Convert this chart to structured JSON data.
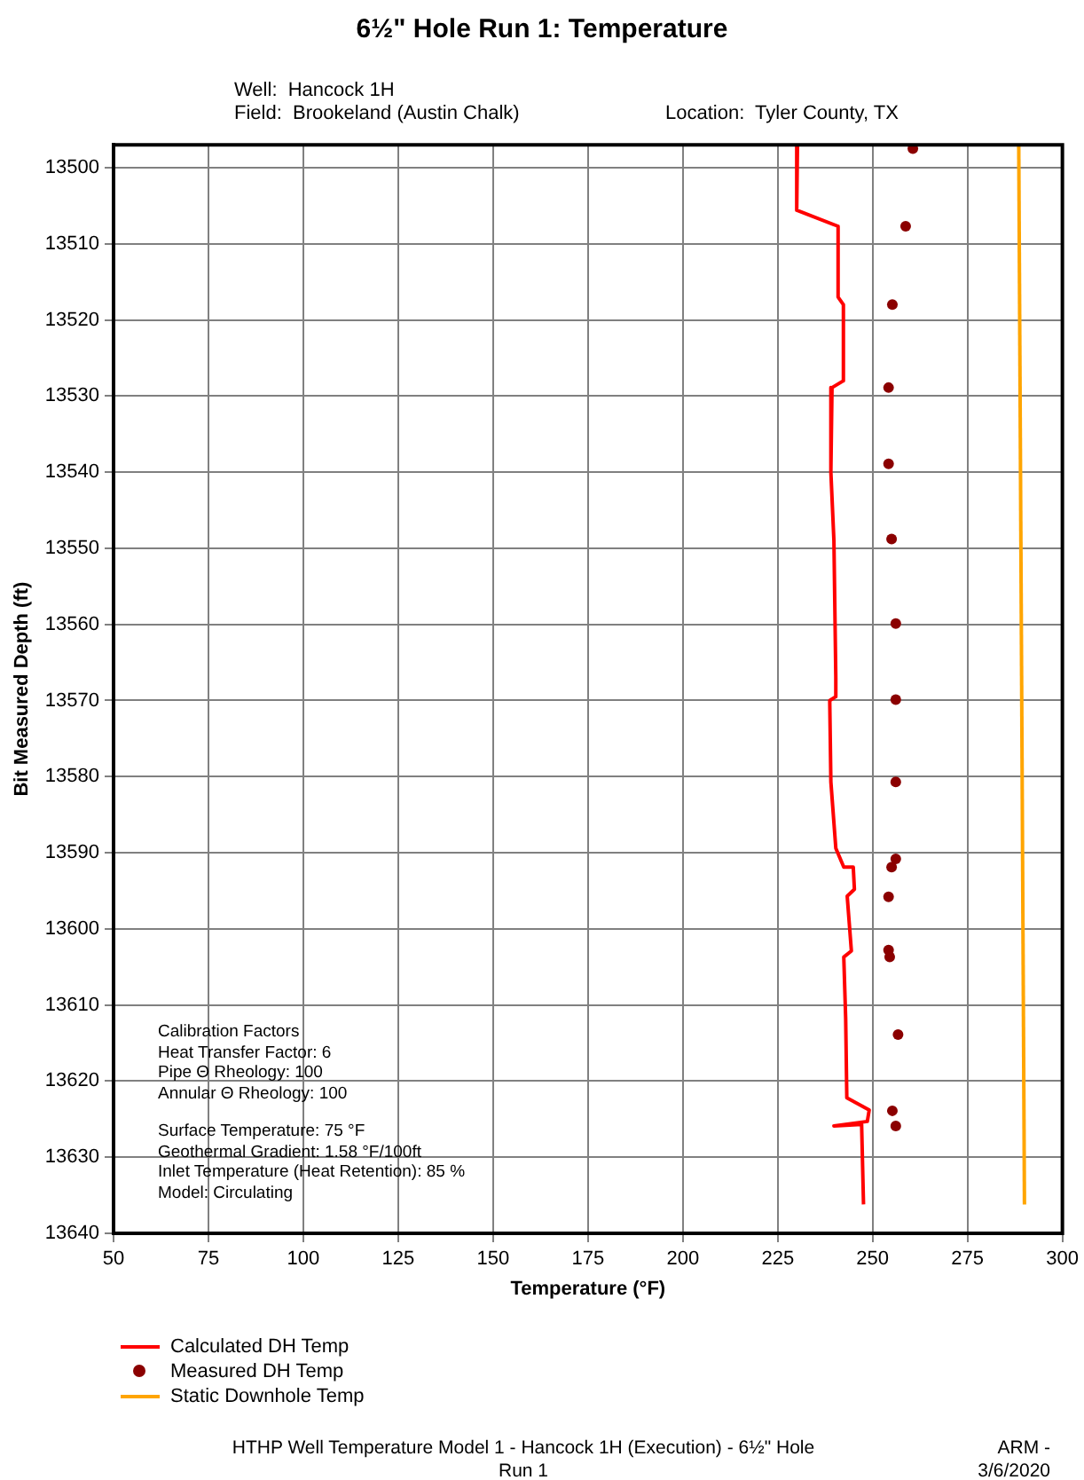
{
  "chart_data": {
    "type": "line",
    "title": "6½\" Hole Run 1: Temperature",
    "xlabel": "Temperature (°F)",
    "ylabel": "Bit Measured Depth (ft)",
    "annotations": [
      "Well:  Hancock 1H",
      "Field:  Brookeland (Austin Chalk)",
      "Location:  Tyler County, TX",
      "Calibration Factors",
      "Heat Transfer Factor: 6",
      "Pipe Θ Rheology: 100",
      "Annular Θ Rheology: 100",
      "Surface Temperature: 75 °F",
      "Geothermal Gradient: 1.58 °F/100ft",
      "Inlet Temperature (Heat Retention): 85 %",
      "Model: Circulating",
      "HTHP Well Temperature Model 1 - Hancock 1H (Execution) - 6½\" Hole Run 1",
      "ARM - 3/6/2020"
    ],
    "xlim": [
      50,
      300
    ],
    "xticks": [
      50,
      75,
      100,
      125,
      150,
      175,
      200,
      225,
      250,
      275,
      300
    ],
    "ylim": [
      13640,
      13497
    ],
    "yticks": [
      13500,
      13510,
      13520,
      13530,
      13540,
      13550,
      13560,
      13570,
      13580,
      13590,
      13600,
      13610,
      13620,
      13630,
      13640
    ],
    "grid": true,
    "legend": "bottom",
    "marker": "none",
    "series": [
      {
        "name": "Calculated DH Temp",
        "type": "line",
        "color": "#ff0000",
        "x": [
          230.2,
          230,
          240.9,
          240.9,
          242.3,
          242.3,
          239.3,
          239,
          239.8,
          240.3,
          240.3,
          238.7,
          239,
          240.3,
          242.4,
          244.9,
          245.2,
          243.3,
          244.4,
          242.4,
          242.9,
          243.2,
          249.1,
          248.6,
          239.8,
          247.1,
          247.6
        ],
        "values": [
          13497,
          13505.6,
          13507.7,
          13517,
          13518,
          13528,
          13528.9,
          13540,
          13549,
          13567,
          13569.5,
          13570,
          13580.7,
          13589.4,
          13591.9,
          13591.9,
          13594.8,
          13595.7,
          13602.9,
          13603.7,
          13611.8,
          13622.2,
          13623.8,
          13625.3,
          13625.9,
          13625.7,
          13636.2
        ]
      },
      {
        "name": "Measured DH Temp",
        "type": "scatter",
        "marker": "circle",
        "color": "#8b0000",
        "x": [
          260.6,
          258.7,
          255.2,
          254.2,
          254.2,
          255,
          256.1,
          256.1,
          256.1,
          256.1,
          255,
          254.2,
          254.2,
          254.5,
          256.7,
          255.2,
          256.1
        ],
        "values": [
          13497.5,
          13507.7,
          13518,
          13528.9,
          13538.9,
          13548.8,
          13559.9,
          13569.9,
          13580.7,
          13590.8,
          13591.9,
          13595.8,
          13602.8,
          13603.7,
          13613.9,
          13623.9,
          13625.9
        ]
      },
      {
        "name": "Static Downhole Temp",
        "type": "line",
        "color": "#ffa500",
        "x": [
          288.5,
          290
        ],
        "values": [
          13497,
          13636.2
        ]
      }
    ]
  }
}
